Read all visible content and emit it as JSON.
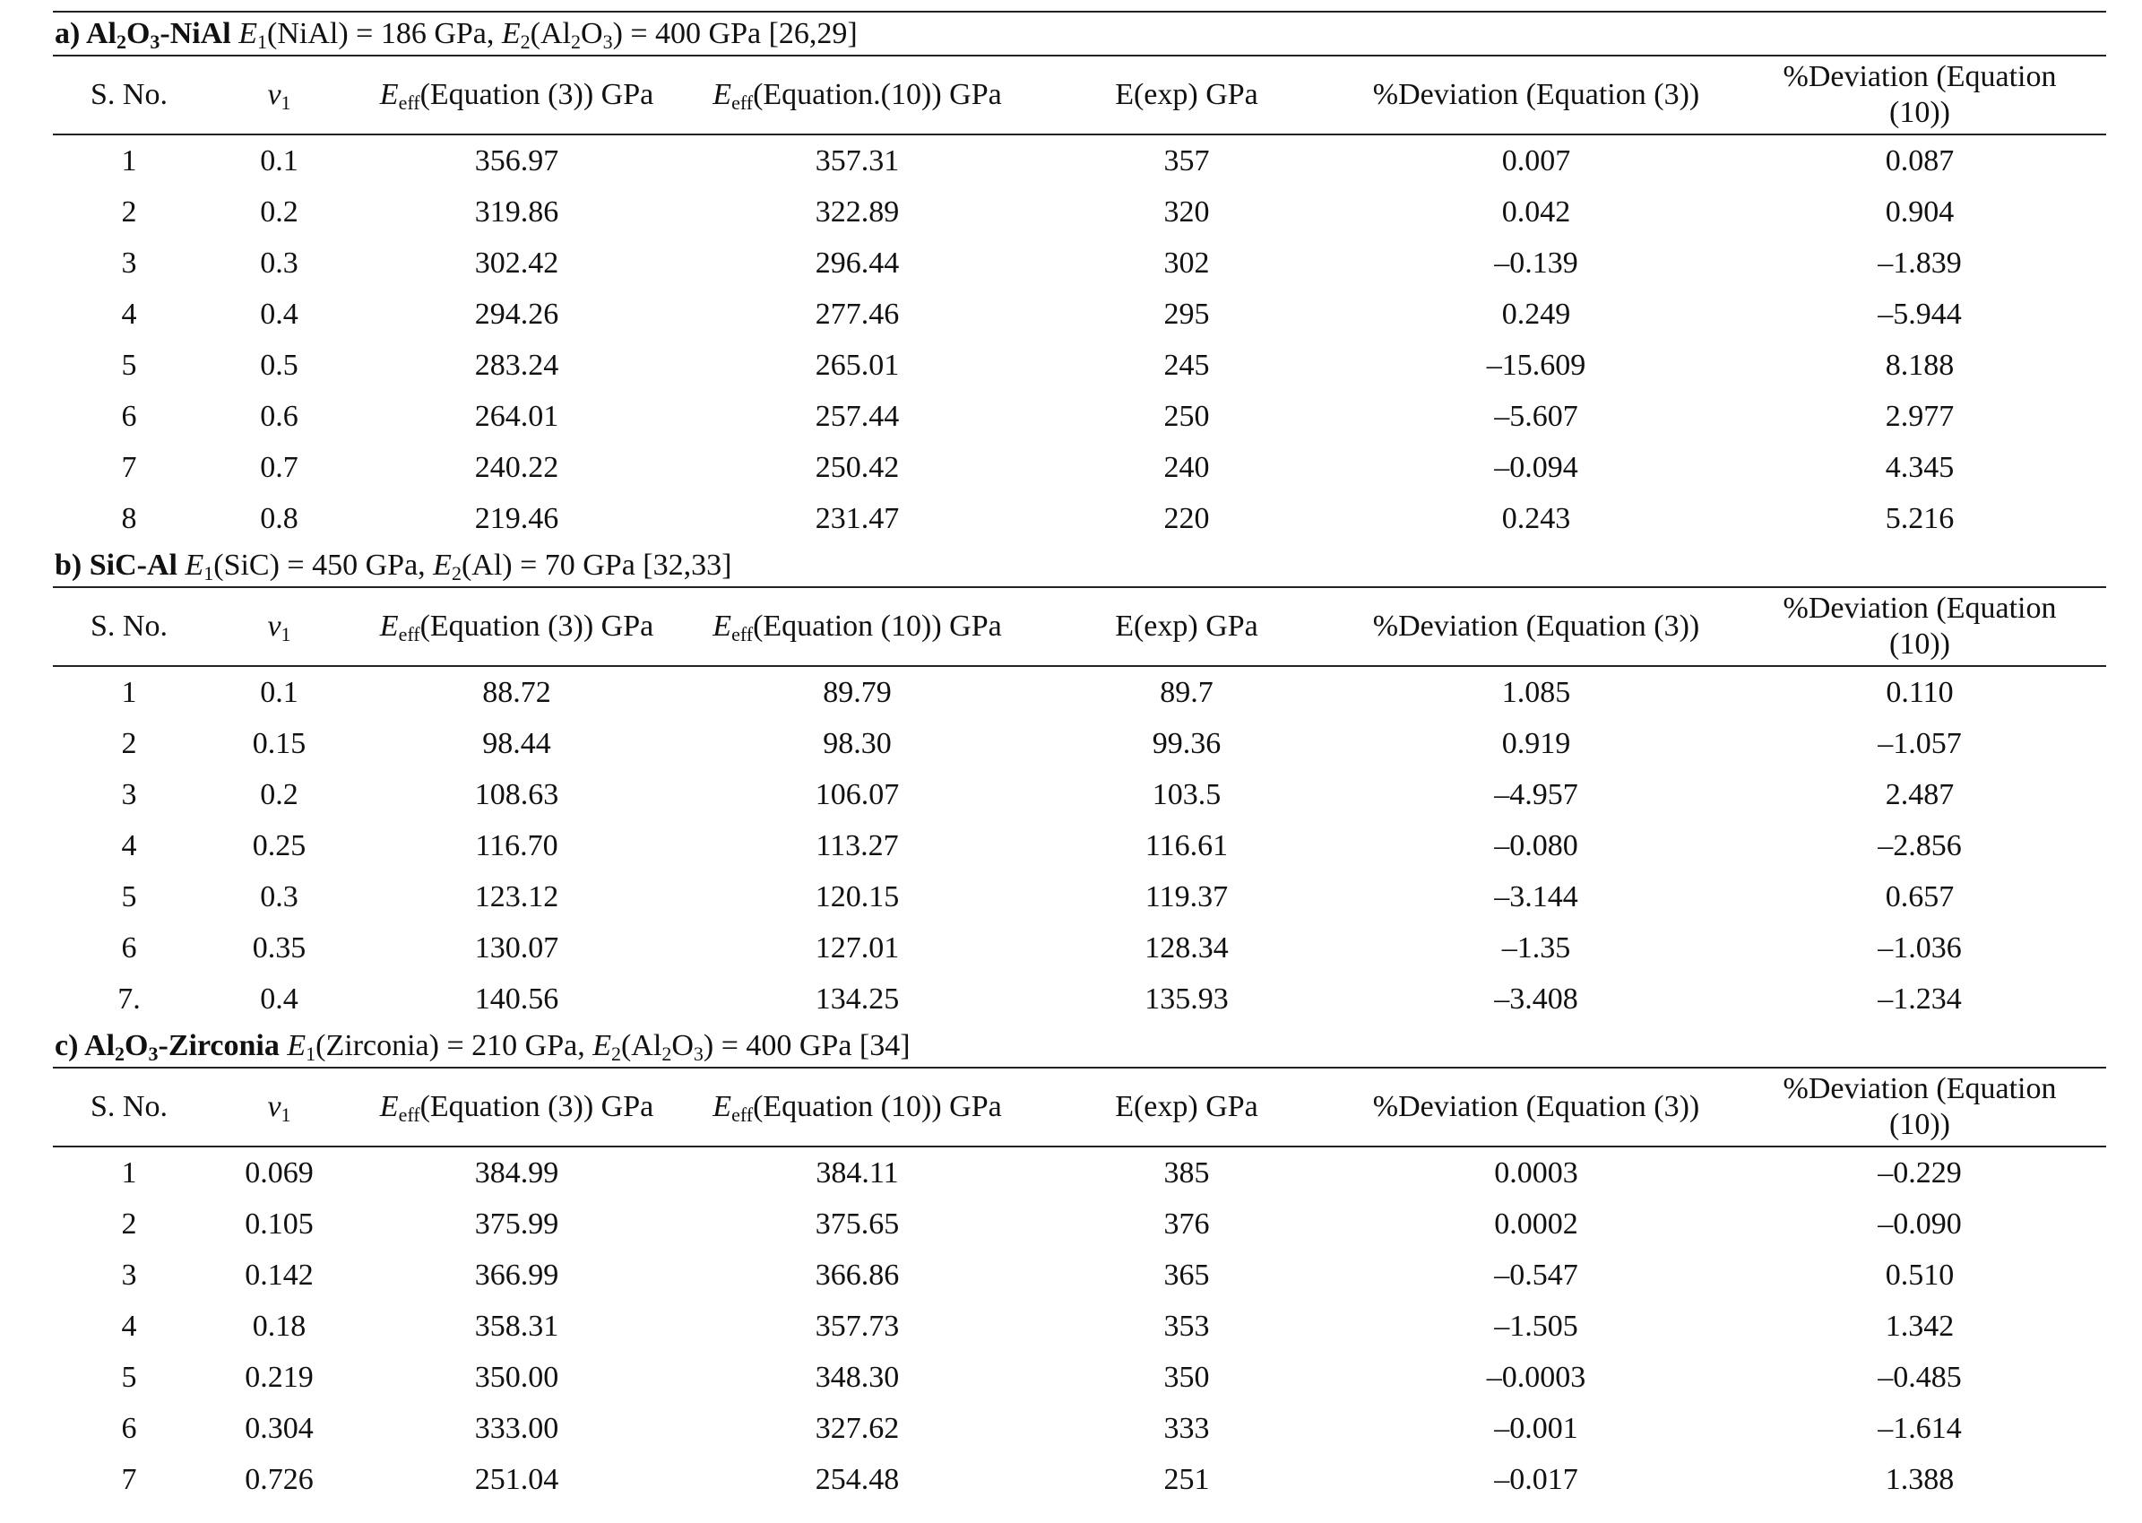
{
  "headers": {
    "sno": "S. No.",
    "v_sym": "v",
    "v_sub": "1",
    "eff_sym": "E",
    "eff_sub": "eff",
    "eff_eq3_a": "(Equation (3)) GPa",
    "eff_eq10_a": "(Equation.(10)) GPa",
    "eff_eq3": "(Equation (3)) GPa",
    "eff_eq10": "(Equation (10)) GPa",
    "eexp": "E(exp) GPa",
    "dev3": "%Deviation (Equation (3))",
    "dev10_line1": "%Deviation (Equation",
    "dev10_line2": "(10))"
  },
  "sections": [
    {
      "label": "a)",
      "mat1": "Al",
      "mat1_sub1": "2",
      "mat1_mid": "O",
      "mat1_sub2": "3",
      "mat_rest": "-NiAl",
      "E1_sym": "E",
      "E1_sub": "1",
      "E1_text": "(NiAl) = 186 GPa, ",
      "E2_sym": "E",
      "E2_sub": "2",
      "E2_text_a": "(Al",
      "E2_sub_a": "2",
      "E2_text_b": "O",
      "E2_sub_b": "3",
      "E2_text_c": ") = 400 GPa [26,29]",
      "rows": [
        [
          "1",
          "0.1",
          "356.97",
          "357.31",
          "357",
          "0.007",
          "0.087"
        ],
        [
          "2",
          "0.2",
          "319.86",
          "322.89",
          "320",
          "0.042",
          "0.904"
        ],
        [
          "3",
          "0.3",
          "302.42",
          "296.44",
          "302",
          "–0.139",
          "–1.839"
        ],
        [
          "4",
          "0.4",
          "294.26",
          "277.46",
          "295",
          "0.249",
          "–5.944"
        ],
        [
          "5",
          "0.5",
          "283.24",
          "265.01",
          "245",
          "–15.609",
          "8.188"
        ],
        [
          "6",
          "0.6",
          "264.01",
          "257.44",
          "250",
          "–5.607",
          "2.977"
        ],
        [
          "7",
          "0.7",
          "240.22",
          "250.42",
          "240",
          "–0.094",
          "4.345"
        ],
        [
          "8",
          "0.8",
          "219.46",
          "231.47",
          "220",
          "0.243",
          "5.216"
        ]
      ]
    },
    {
      "label": "b)",
      "mat": "SiC-Al",
      "E1_sym": "E",
      "E1_sub": "1",
      "E1_text": "(SiC) = 450 GPa, ",
      "E2_sym": "E",
      "E2_sub": "2",
      "E2_text": "(Al) = 70 GPa [32,33]",
      "rows": [
        [
          "1",
          "0.1",
          "88.72",
          "89.79",
          "89.7",
          "1.085",
          "0.110"
        ],
        [
          "2",
          "0.15",
          "98.44",
          "98.30",
          "99.36",
          "0.919",
          "–1.057"
        ],
        [
          "3",
          "0.2",
          "108.63",
          "106.07",
          "103.5",
          "–4.957",
          "2.487"
        ],
        [
          "4",
          "0.25",
          "116.70",
          "113.27",
          "116.61",
          "–0.080",
          "–2.856"
        ],
        [
          "5",
          "0.3",
          "123.12",
          "120.15",
          "119.37",
          "–3.144",
          "0.657"
        ],
        [
          "6",
          "0.35",
          "130.07",
          "127.01",
          "128.34",
          "–1.35",
          "–1.036"
        ],
        [
          "7.",
          "0.4",
          "140.56",
          "134.25",
          "135.93",
          "–3.408",
          "–1.234"
        ]
      ]
    },
    {
      "label": "c)",
      "mat1": "Al",
      "mat1_sub1": "2",
      "mat1_mid": "O",
      "mat1_sub2": "3",
      "mat_rest": "-Zirconia",
      "E1_sym": "E",
      "E1_sub": "1",
      "E1_text": "(Zirconia) = 210 GPa, ",
      "E2_sym": "E",
      "E2_sub": "2",
      "E2_text_a": "(Al",
      "E2_sub_a": "2",
      "E2_text_b": "O",
      "E2_sub_b": "3",
      "E2_text_c": ") = 400 GPa [34]",
      "rows": [
        [
          "1",
          "0.069",
          "384.99",
          "384.11",
          "385",
          "0.0003",
          "–0.229"
        ],
        [
          "2",
          "0.105",
          "375.99",
          "375.65",
          "376",
          "0.0002",
          "–0.090"
        ],
        [
          "3",
          "0.142",
          "366.99",
          "366.86",
          "365",
          "–0.547",
          "0.510"
        ],
        [
          "4",
          "0.18",
          "358.31",
          "357.73",
          "353",
          "–1.505",
          "1.342"
        ],
        [
          "5",
          "0.219",
          "350.00",
          "348.30",
          "350",
          "–0.0003",
          "–0.485"
        ],
        [
          "6",
          "0.304",
          "333.00",
          "327.62",
          "333",
          "–0.001",
          "–1.614"
        ],
        [
          "7",
          "0.726",
          "251.04",
          "254.48",
          "251",
          "–0.017",
          "1.388"
        ]
      ]
    }
  ]
}
